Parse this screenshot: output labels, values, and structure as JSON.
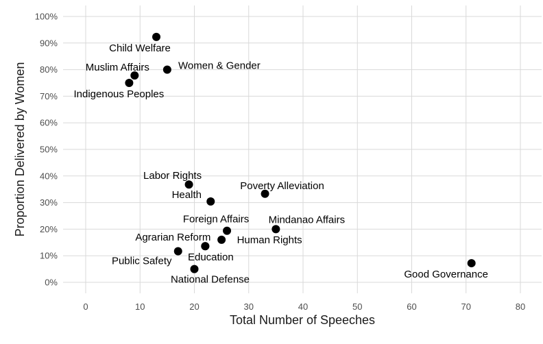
{
  "chart_data": {
    "type": "scatter",
    "title": "",
    "xlabel": "Total Number of Speeches",
    "ylabel": "Proportion Delivered by Women",
    "xlim": [
      -4,
      84
    ],
    "ylim": [
      -0.04,
      1.03
    ],
    "x_ticks": [
      0,
      10,
      20,
      30,
      40,
      50,
      60,
      70,
      80
    ],
    "x_tick_labels": [
      "0",
      "10",
      "20",
      "30",
      "40",
      "50",
      "60",
      "70",
      "80"
    ],
    "y_ticks": [
      0,
      0.1,
      0.2,
      0.3,
      0.4,
      0.5,
      0.6,
      0.7,
      0.8,
      0.9,
      1.0
    ],
    "y_tick_labels": [
      "0%",
      "10%",
      "20%",
      "30%",
      "40%",
      "50%",
      "60%",
      "70%",
      "80%",
      "90%",
      "100%"
    ],
    "grid": true,
    "points": [
      {
        "label": "Child Welfare",
        "x": 13,
        "y": 0.923
      },
      {
        "label": "Muslim Affairs",
        "x": 9,
        "y": 0.778
      },
      {
        "label": "Women & Gender",
        "x": 15,
        "y": 0.8
      },
      {
        "label": "Indigenous Peoples",
        "x": 8,
        "y": 0.75
      },
      {
        "label": "Labor Rights",
        "x": 19,
        "y": 0.368
      },
      {
        "label": "Health",
        "x": 23,
        "y": 0.304
      },
      {
        "label": "Poverty Alleviation",
        "x": 33,
        "y": 0.333
      },
      {
        "label": "Foreign Affairs",
        "x": 26,
        "y": 0.194
      },
      {
        "label": "Mindanao Affairs",
        "x": 35,
        "y": 0.2
      },
      {
        "label": "Human Rights",
        "x": 25,
        "y": 0.16
      },
      {
        "label": "Agrarian Reform",
        "x": 22,
        "y": 0.136
      },
      {
        "label": "Public Safety",
        "x": 17,
        "y": 0.117
      },
      {
        "label": "Education",
        "x": 22,
        "y": 0.136
      },
      {
        "label": "National Defense",
        "x": 20,
        "y": 0.05
      },
      {
        "label": "Good Governance",
        "x": 71,
        "y": 0.072
      }
    ]
  }
}
